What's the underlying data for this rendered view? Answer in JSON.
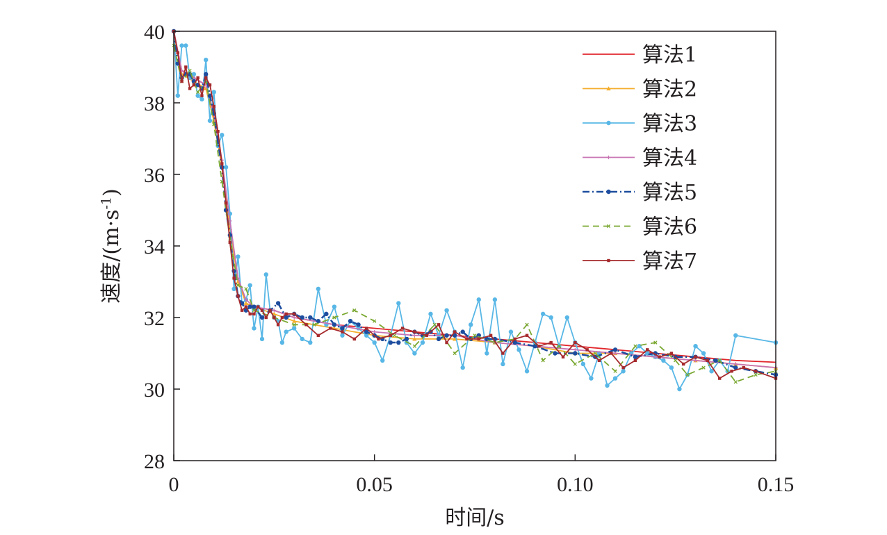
{
  "chart_data": {
    "type": "line",
    "xlabel": "时间/s",
    "ylabel": "速度/(m·s",
    "ylabel_sup": "-1",
    "ylabel_close": ")",
    "xlim": [
      0,
      0.15
    ],
    "ylim": [
      28,
      40
    ],
    "x_ticks": [
      0,
      0.05,
      0.1,
      0.15
    ],
    "x_tick_labels": [
      "0",
      "0.05",
      "0.10",
      "0.15"
    ],
    "y_ticks": [
      28,
      30,
      32,
      34,
      36,
      38,
      40
    ],
    "y_tick_labels": [
      "28",
      "30",
      "32",
      "34",
      "36",
      "38",
      "40"
    ],
    "grid": false,
    "legend_position": "top-right",
    "series": [
      {
        "name": "算法1",
        "color": "#e1262b",
        "dash": "",
        "marker": "none",
        "x": [
          0,
          0.002,
          0.005,
          0.008,
          0.01,
          0.012,
          0.014,
          0.016,
          0.018,
          0.02,
          0.025,
          0.03,
          0.04,
          0.05,
          0.06,
          0.07,
          0.08,
          0.09,
          0.1,
          0.11,
          0.12,
          0.13,
          0.14,
          0.15
        ],
        "y": [
          40,
          38.9,
          38.7,
          38.5,
          37.6,
          36.3,
          34.6,
          33.1,
          32.4,
          32.3,
          32.2,
          32.0,
          31.8,
          31.7,
          31.6,
          31.5,
          31.4,
          31.3,
          31.2,
          31.1,
          31.0,
          30.9,
          30.8,
          30.75
        ]
      },
      {
        "name": "算法2",
        "color": "#f4ae2e",
        "dash": "",
        "marker": "triangle",
        "x": [
          0,
          0.002,
          0.005,
          0.008,
          0.01,
          0.012,
          0.014,
          0.016,
          0.018,
          0.02,
          0.025,
          0.03,
          0.04,
          0.05,
          0.06,
          0.07,
          0.08,
          0.09,
          0.1,
          0.11,
          0.12,
          0.13,
          0.14,
          0.15
        ],
        "y": [
          40,
          38.8,
          38.6,
          38.4,
          37.5,
          36.2,
          34.5,
          33.0,
          32.4,
          32.3,
          32.1,
          31.9,
          31.7,
          31.5,
          31.4,
          31.4,
          31.3,
          31.2,
          31.0,
          31.0,
          30.9,
          30.8,
          30.7,
          30.6
        ]
      },
      {
        "name": "算法3",
        "color": "#58b7e6",
        "dash": "",
        "marker": "circle",
        "x": [
          0,
          0.001,
          0.002,
          0.003,
          0.004,
          0.005,
          0.006,
          0.007,
          0.008,
          0.009,
          0.01,
          0.011,
          0.012,
          0.013,
          0.014,
          0.015,
          0.016,
          0.017,
          0.018,
          0.019,
          0.02,
          0.021,
          0.022,
          0.023,
          0.024,
          0.025,
          0.026,
          0.027,
          0.028,
          0.03,
          0.032,
          0.034,
          0.036,
          0.038,
          0.04,
          0.042,
          0.044,
          0.046,
          0.048,
          0.05,
          0.052,
          0.054,
          0.056,
          0.058,
          0.06,
          0.062,
          0.064,
          0.066,
          0.068,
          0.07,
          0.072,
          0.074,
          0.076,
          0.078,
          0.08,
          0.082,
          0.084,
          0.086,
          0.088,
          0.09,
          0.092,
          0.094,
          0.096,
          0.098,
          0.1,
          0.102,
          0.104,
          0.106,
          0.108,
          0.11,
          0.112,
          0.114,
          0.116,
          0.118,
          0.12,
          0.122,
          0.124,
          0.126,
          0.128,
          0.13,
          0.132,
          0.134,
          0.136,
          0.138,
          0.14,
          0.15
        ],
        "y": [
          40,
          38.2,
          39.6,
          39.6,
          38.7,
          38.8,
          38.2,
          38.1,
          39.2,
          37.5,
          38.3,
          36.8,
          37.1,
          36.2,
          34.9,
          32.8,
          33.7,
          32.4,
          32.5,
          32.9,
          31.7,
          32.3,
          31.4,
          33.2,
          32.2,
          32.0,
          31.9,
          31.3,
          31.6,
          31.7,
          31.4,
          31.3,
          32.8,
          31.8,
          32.3,
          31.5,
          31.9,
          31.7,
          31.5,
          31.3,
          30.8,
          31.5,
          32.4,
          31.3,
          31.0,
          31.3,
          32.1,
          31.5,
          32.2,
          31.6,
          30.6,
          31.8,
          32.5,
          31.0,
          32.5,
          30.7,
          31.6,
          31.1,
          30.5,
          31.3,
          32.1,
          32.0,
          31.2,
          32.0,
          31.3,
          30.7,
          30.3,
          31.0,
          30.1,
          30.3,
          30.5,
          31.0,
          31.2,
          31.0,
          30.9,
          30.8,
          30.6,
          30.0,
          30.4,
          31.2,
          31.0,
          30.5,
          30.8,
          30.5,
          31.5,
          31.3
        ]
      },
      {
        "name": "算法4",
        "color": "#c774b4",
        "dash": "",
        "marker": "plus",
        "x": [
          0,
          0.002,
          0.005,
          0.008,
          0.01,
          0.012,
          0.014,
          0.016,
          0.018,
          0.02,
          0.025,
          0.03,
          0.04,
          0.05,
          0.06,
          0.07,
          0.08,
          0.09,
          0.1,
          0.11,
          0.12,
          0.13,
          0.14,
          0.15
        ],
        "y": [
          40,
          38.9,
          38.7,
          38.5,
          37.7,
          36.4,
          34.7,
          33.1,
          32.5,
          32.3,
          32.2,
          32.0,
          31.8,
          31.6,
          31.5,
          31.5,
          31.3,
          31.2,
          31.1,
          31.0,
          30.9,
          30.8,
          30.7,
          30.6
        ]
      },
      {
        "name": "算法5",
        "color": "#1d4d9e",
        "dash": "10,4,2,4",
        "marker": "circle",
        "x": [
          0,
          0.001,
          0.002,
          0.003,
          0.004,
          0.005,
          0.006,
          0.007,
          0.008,
          0.009,
          0.01,
          0.011,
          0.012,
          0.013,
          0.014,
          0.015,
          0.016,
          0.017,
          0.018,
          0.019,
          0.02,
          0.022,
          0.024,
          0.026,
          0.028,
          0.03,
          0.032,
          0.034,
          0.036,
          0.038,
          0.04,
          0.042,
          0.044,
          0.046,
          0.048,
          0.05,
          0.052,
          0.054,
          0.056,
          0.058,
          0.06,
          0.062,
          0.064,
          0.066,
          0.068,
          0.07,
          0.072,
          0.074,
          0.076,
          0.078,
          0.08,
          0.085,
          0.09,
          0.095,
          0.1,
          0.105,
          0.11,
          0.115,
          0.12,
          0.125,
          0.13,
          0.135,
          0.14,
          0.145,
          0.15
        ],
        "y": [
          40,
          39.1,
          38.7,
          38.8,
          38.8,
          38.6,
          38.5,
          38.4,
          38.8,
          38.2,
          37.7,
          36.9,
          36.2,
          35.0,
          34.3,
          33.3,
          32.6,
          32.4,
          32.2,
          32.3,
          32.3,
          32.0,
          32.2,
          32.4,
          32.0,
          32.1,
          32.0,
          32.0,
          31.9,
          32.1,
          31.8,
          31.7,
          31.9,
          31.8,
          31.6,
          31.5,
          31.4,
          31.3,
          31.3,
          31.4,
          31.6,
          31.5,
          31.6,
          31.4,
          31.5,
          31.5,
          31.6,
          31.4,
          31.5,
          31.4,
          31.4,
          31.3,
          31.2,
          31.0,
          31.0,
          30.9,
          31.1,
          30.9,
          31.0,
          30.9,
          30.9,
          30.8,
          30.6,
          30.5,
          30.4
        ]
      },
      {
        "name": "算法6",
        "color": "#7aa832",
        "dash": "9,6",
        "marker": "x",
        "x": [
          0,
          0.002,
          0.004,
          0.006,
          0.008,
          0.01,
          0.012,
          0.014,
          0.016,
          0.018,
          0.02,
          0.025,
          0.03,
          0.035,
          0.04,
          0.045,
          0.05,
          0.055,
          0.06,
          0.065,
          0.07,
          0.075,
          0.08,
          0.085,
          0.088,
          0.092,
          0.096,
          0.1,
          0.105,
          0.11,
          0.115,
          0.12,
          0.125,
          0.128,
          0.132,
          0.136,
          0.14,
          0.145,
          0.15
        ],
        "y": [
          39.6,
          38.6,
          38.9,
          38.3,
          38.6,
          37.4,
          35.8,
          34.2,
          32.9,
          32.8,
          32.2,
          32.0,
          31.8,
          31.8,
          32.0,
          32.2,
          31.9,
          31.5,
          31.2,
          31.8,
          31.0,
          31.5,
          31.3,
          31.4,
          31.8,
          30.8,
          31.2,
          30.7,
          31.0,
          30.5,
          31.2,
          31.3,
          30.8,
          30.4,
          30.6,
          30.8,
          30.2,
          30.4,
          30.5
        ]
      },
      {
        "name": "算法7",
        "color": "#a62a2d",
        "dash": "",
        "marker": "square",
        "x": [
          0,
          0.001,
          0.002,
          0.003,
          0.004,
          0.005,
          0.006,
          0.007,
          0.008,
          0.009,
          0.01,
          0.011,
          0.012,
          0.013,
          0.014,
          0.015,
          0.016,
          0.017,
          0.018,
          0.019,
          0.02,
          0.021,
          0.022,
          0.023,
          0.024,
          0.025,
          0.026,
          0.027,
          0.028,
          0.03,
          0.033,
          0.036,
          0.039,
          0.042,
          0.045,
          0.048,
          0.051,
          0.054,
          0.057,
          0.06,
          0.063,
          0.066,
          0.068,
          0.07,
          0.073,
          0.076,
          0.079,
          0.082,
          0.085,
          0.088,
          0.091,
          0.094,
          0.097,
          0.1,
          0.103,
          0.106,
          0.109,
          0.112,
          0.115,
          0.118,
          0.121,
          0.124,
          0.127,
          0.13,
          0.133,
          0.136,
          0.139,
          0.142,
          0.145,
          0.15
        ],
        "y": [
          40,
          39.4,
          38.6,
          39.0,
          38.4,
          38.5,
          38.7,
          38.2,
          38.7,
          38.5,
          37.9,
          37.2,
          36.3,
          35.2,
          34.1,
          33.1,
          32.6,
          32.2,
          32.3,
          32.1,
          32.1,
          32.3,
          32.2,
          32.0,
          32.2,
          32.0,
          31.8,
          32.0,
          32.1,
          32.1,
          31.8,
          31.5,
          31.7,
          31.6,
          31.4,
          31.7,
          31.4,
          31.5,
          31.7,
          31.6,
          31.5,
          31.8,
          31.3,
          31.6,
          31.4,
          31.4,
          31.5,
          31.0,
          31.4,
          31.5,
          31.2,
          31.3,
          30.9,
          31.3,
          31.1,
          30.8,
          31.0,
          30.6,
          30.8,
          31.1,
          30.9,
          31.0,
          30.7,
          30.9,
          30.8,
          30.3,
          30.5,
          30.6,
          30.5,
          30.3
        ]
      }
    ]
  }
}
